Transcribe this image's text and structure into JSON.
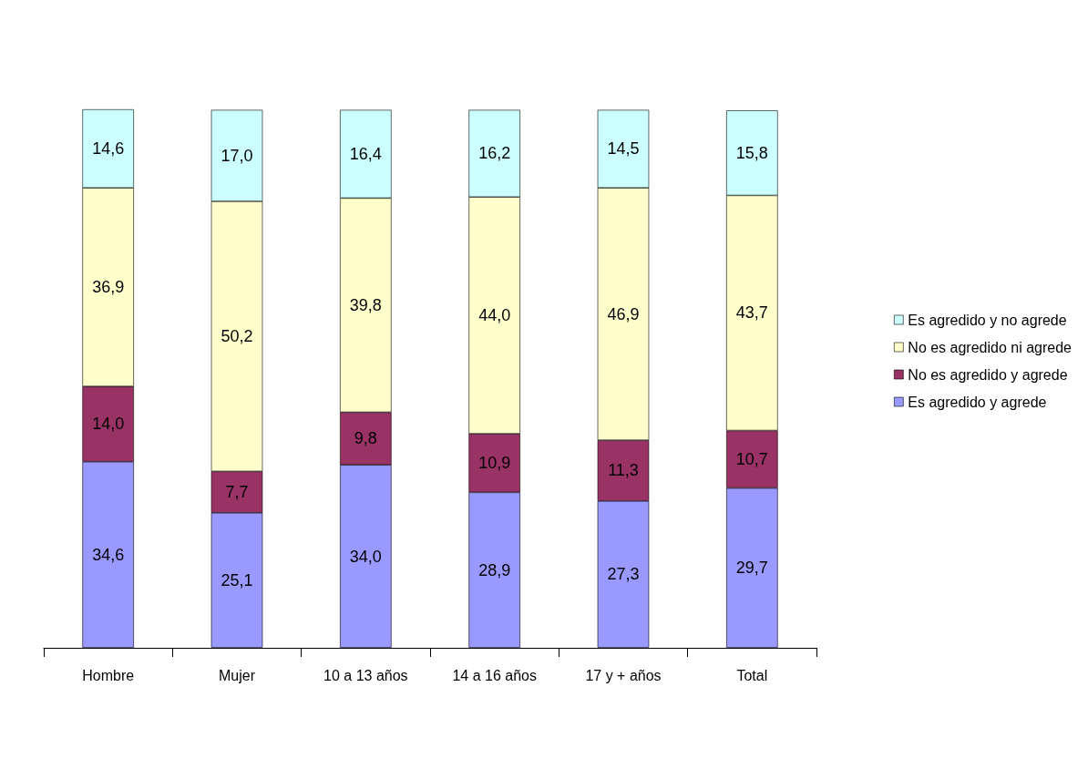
{
  "chart_data": {
    "type": "bar",
    "stacked": true,
    "legend": "right",
    "categories": [
      "Hombre",
      "Mujer",
      "10 a 13 años",
      "14 a 16 años",
      "17 y + años",
      "Total"
    ],
    "series": [
      {
        "name": "Es agredido y agrede",
        "color": "#9999ff",
        "values": [
          34.6,
          25.1,
          34.0,
          28.9,
          27.3,
          29.7
        ],
        "value_labels": [
          "34,6",
          "25,1",
          "34,0",
          "28,9",
          "27,3",
          "29,7"
        ]
      },
      {
        "name": "No es agredido y agrede",
        "color": "#993366",
        "values": [
          14.0,
          7.7,
          9.8,
          10.9,
          11.3,
          10.7
        ],
        "value_labels": [
          "14,0",
          "7,7",
          "9,8",
          "10,9",
          "11,3",
          "10,7"
        ]
      },
      {
        "name": "No es agredido ni agrede",
        "color": "#ffffcc",
        "values": [
          36.9,
          50.2,
          39.8,
          44.0,
          46.9,
          43.7
        ],
        "value_labels": [
          "36,9",
          "50,2",
          "39,8",
          "44,0",
          "46,9",
          "43,7"
        ]
      },
      {
        "name": "Es agredido y no agrede",
        "color": "#ccffff",
        "values": [
          14.6,
          17.0,
          16.4,
          16.2,
          14.5,
          15.8
        ],
        "value_labels": [
          "14,6",
          "17,0",
          "16,4",
          "16,2",
          "14,5",
          "15,8"
        ]
      }
    ]
  }
}
